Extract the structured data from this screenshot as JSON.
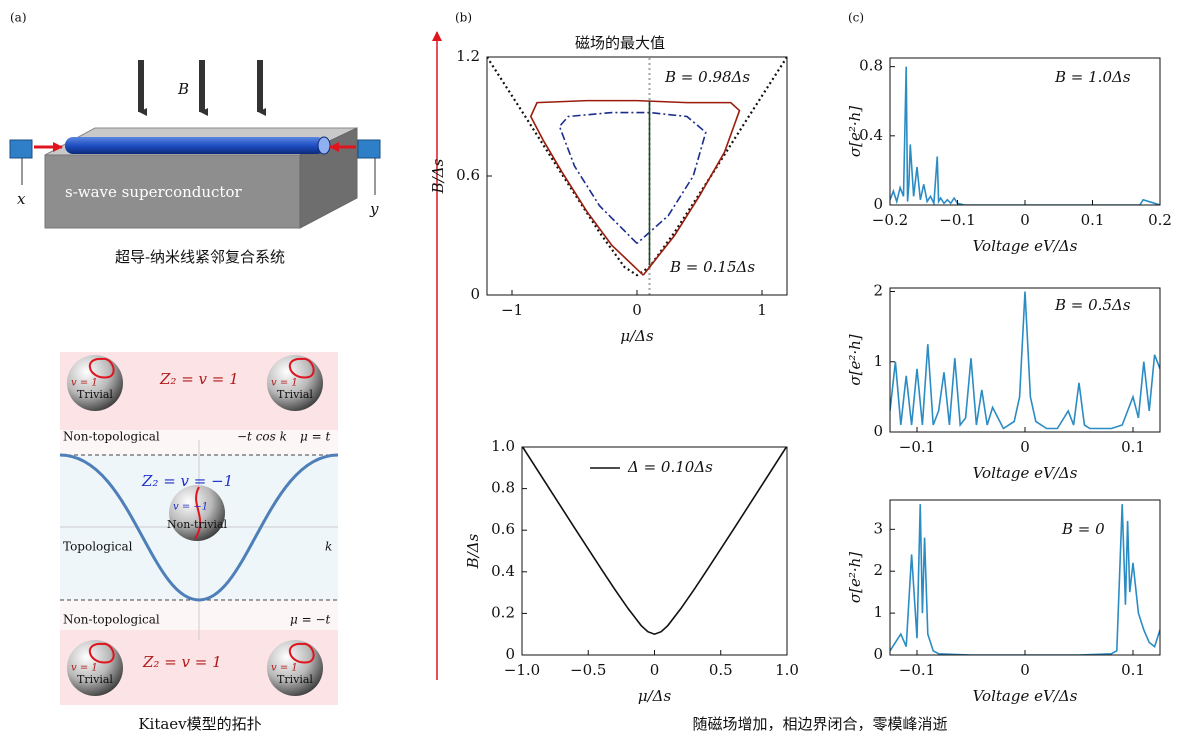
{
  "panel_labels": [
    "(a)",
    "(b)",
    "(c)"
  ],
  "device": {
    "field_label": "B",
    "substrate_label": "s-wave superconductor",
    "lead_left": "x",
    "lead_right": "y",
    "caption": "超导-纳米线紧邻复合系统"
  },
  "kitaev": {
    "top_label": "Z₂ = v = 1",
    "upper_left": "Non-topological",
    "dispersion": "−t cos k",
    "upper_right": "μ = t",
    "middle_label": "Z₂ = v = −1",
    "middle_left": "Topological",
    "axis_k": "k",
    "lower_left": "Non-topological",
    "lower_right": "μ = −t",
    "bottom_label": "Z₂ = v = 1",
    "spheres": [
      {
        "label": "Trivial",
        "v": "v = 1"
      },
      {
        "label": "Trivial",
        "v": "v = 1"
      },
      {
        "label": "Non-trivial",
        "v": "v = −1"
      },
      {
        "label": "Trivial",
        "v": "v = 1"
      },
      {
        "label": "Trivial",
        "v": "v = 1"
      }
    ],
    "caption": "Kitaev模型的拓扑"
  },
  "caption_bc": "随磁场增加，相边界闭合，零模峰消逝",
  "chart_data": [
    {
      "type": "line",
      "title": "磁场的最大值",
      "x_label": "μ/Δs",
      "y_label": "B/Δs",
      "annotations": [
        "B = 0.98Δs",
        "B = 0.15Δs"
      ],
      "xlim": [
        -1.2,
        1.2
      ],
      "ylim": [
        0,
        1.2
      ],
      "xticks": [
        {
          "value": -1,
          "label": "−1"
        },
        0,
        1
      ],
      "yticks": [
        0,
        0.6,
        1.2
      ],
      "series": [
        {
          "color": "#111111",
          "style": "dotted",
          "x": [
            -1.2,
            -0.9,
            -0.6,
            -0.3,
            -0.1,
            0,
            0.1,
            0.3,
            0.6,
            0.9,
            1.2
          ],
          "values": [
            1.2,
            0.906,
            0.608,
            0.316,
            0.141,
            0.1,
            0.141,
            0.316,
            0.608,
            0.906,
            1.2
          ]
        },
        {
          "color": "#aaaaaa",
          "style": "dotted",
          "x": [
            0.1,
            0.1
          ],
          "values": [
            0,
            1.2
          ]
        },
        {
          "color": "#9b1c0c",
          "style": "solid",
          "x": [
            0.05,
            -0.2,
            -0.4,
            -0.6,
            -0.75,
            -0.85,
            -0.8,
            -0.4,
            0,
            0.4,
            0.75,
            0.82,
            0.7,
            0.5,
            0.3,
            0.05
          ],
          "values": [
            0.1,
            0.25,
            0.42,
            0.62,
            0.78,
            0.9,
            0.97,
            0.98,
            0.98,
            0.97,
            0.97,
            0.93,
            0.72,
            0.5,
            0.3,
            0.1
          ]
        },
        {
          "color": "#1a2d8c",
          "style": "dashdot",
          "x": [
            0,
            -0.3,
            -0.5,
            -0.62,
            -0.55,
            -0.2,
            0.1,
            0.4,
            0.55,
            0.45,
            0.25,
            0
          ],
          "values": [
            0.26,
            0.45,
            0.65,
            0.85,
            0.9,
            0.92,
            0.92,
            0.9,
            0.82,
            0.6,
            0.4,
            0.26
          ]
        },
        {
          "color": "#1d4a1d",
          "style": "solid",
          "x": [
            0.1,
            0.1
          ],
          "values": [
            0.15,
            0.98
          ]
        }
      ]
    },
    {
      "type": "line",
      "x_label": "μ/Δs",
      "y_label": "B/Δs",
      "xlim": [
        -1,
        1
      ],
      "ylim": [
        0,
        1
      ],
      "xticks": [
        {
          "value": -1,
          "label": "−1.0"
        },
        {
          "value": -0.5,
          "label": "−0.5"
        },
        0,
        0.5,
        {
          "value": 1,
          "label": "1.0"
        }
      ],
      "yticks": [
        0,
        0.2,
        0.4,
        0.6,
        0.8,
        {
          "value": 1,
          "label": "1.0"
        }
      ],
      "series": [
        {
          "name": "Δ = 0.10Δs",
          "color": "#111111",
          "style": "solid",
          "x": [
            -1,
            -0.8,
            -0.6,
            -0.4,
            -0.3,
            -0.2,
            -0.1,
            -0.05,
            0,
            0.05,
            0.1,
            0.2,
            0.3,
            0.4,
            0.6,
            0.8,
            1
          ],
          "values": [
            1.005,
            0.806,
            0.608,
            0.412,
            0.316,
            0.224,
            0.141,
            0.112,
            0.1,
            0.112,
            0.141,
            0.224,
            0.316,
            0.412,
            0.608,
            0.806,
            1.005
          ]
        }
      ]
    },
    {
      "type": "line",
      "x_label": "Voltage eV/Δs",
      "y_label": "σ[e²·h]",
      "annotations": [
        "B = 1.0Δs"
      ],
      "xlim": [
        -0.2,
        0.2
      ],
      "ylim": [
        0,
        0.85
      ],
      "xticks": [
        {
          "value": -0.2,
          "label": "−0.2"
        },
        {
          "value": -0.1,
          "label": "−0.1"
        },
        0,
        0.1,
        0.2
      ],
      "yticks": [
        0,
        0.4,
        0.8
      ],
      "series": [
        {
          "color": "#2b8cc4",
          "style": "solid",
          "x": [
            -0.2,
            -0.195,
            -0.19,
            -0.185,
            -0.18,
            -0.176,
            -0.174,
            -0.172,
            -0.17,
            -0.165,
            -0.16,
            -0.155,
            -0.15,
            -0.145,
            -0.14,
            -0.135,
            -0.13,
            -0.128,
            -0.125,
            -0.12,
            -0.115,
            -0.11,
            -0.105,
            -0.1,
            -0.09,
            0,
            0.1,
            0.17,
            0.175,
            0.2
          ],
          "values": [
            0.03,
            0.08,
            0.02,
            0.1,
            0.05,
            0.8,
            0.02,
            0.12,
            0.35,
            0.05,
            0.22,
            0.03,
            0.12,
            0.02,
            0.05,
            0.01,
            0.28,
            0.02,
            0.04,
            0.01,
            0.03,
            0.01,
            0.04,
            0.01,
            0,
            0,
            0,
            0,
            0.03,
            0
          ]
        }
      ]
    },
    {
      "type": "line",
      "x_label": "Voltage eV/Δs",
      "y_label": "σ[e²·h]",
      "annotations": [
        "B = 0.5Δs"
      ],
      "xlim": [
        -0.125,
        0.125
      ],
      "ylim": [
        0,
        2.05
      ],
      "xticks": [
        {
          "value": -0.1,
          "label": "−0.1"
        },
        0,
        0.1
      ],
      "yticks": [
        0,
        1,
        2
      ],
      "series": [
        {
          "color": "#2b8cc4",
          "style": "solid",
          "x": [
            -0.125,
            -0.12,
            -0.115,
            -0.11,
            -0.105,
            -0.1,
            -0.095,
            -0.09,
            -0.085,
            -0.08,
            -0.075,
            -0.07,
            -0.065,
            -0.06,
            -0.055,
            -0.05,
            -0.045,
            -0.04,
            -0.035,
            -0.03,
            -0.02,
            -0.01,
            -0.005,
            0,
            0.005,
            0.01,
            0.02,
            0.03,
            0.04,
            0.045,
            0.05,
            0.055,
            0.06,
            0.07,
            0.08,
            0.09,
            0.1,
            0.105,
            0.11,
            0.115,
            0.12,
            0.125
          ],
          "values": [
            0.3,
            1.0,
            0.1,
            0.8,
            0.1,
            0.9,
            0.1,
            1.25,
            0.1,
            0.3,
            0.85,
            0.1,
            1.05,
            0.1,
            0.2,
            1.05,
            0.1,
            0.6,
            0.1,
            0.35,
            0.05,
            0.15,
            0.5,
            2.0,
            0.5,
            0.15,
            0.05,
            0.05,
            0.3,
            0.1,
            0.7,
            0.1,
            0.05,
            0.05,
            0.05,
            0.1,
            0.5,
            0.2,
            1.0,
            0.3,
            1.1,
            0.9
          ]
        }
      ]
    },
    {
      "type": "line",
      "x_label": "Voltage eV/Δs",
      "y_label": "σ[e²·h]",
      "annotations": [
        "B = 0"
      ],
      "xlim": [
        -0.125,
        0.125
      ],
      "ylim": [
        0,
        3.7
      ],
      "xticks": [
        {
          "value": -0.1,
          "label": "−0.1"
        },
        0,
        0.1
      ],
      "yticks": [
        0,
        1,
        2,
        3
      ],
      "series": [
        {
          "color": "#2b8cc4",
          "style": "solid",
          "x": [
            -0.125,
            -0.12,
            -0.115,
            -0.11,
            -0.105,
            -0.1,
            -0.097,
            -0.095,
            -0.093,
            -0.09,
            -0.085,
            -0.08,
            -0.05,
            0,
            0.05,
            0.08,
            0.085,
            0.09,
            0.093,
            0.095,
            0.097,
            0.1,
            0.105,
            0.11,
            0.115,
            0.12,
            0.125
          ],
          "values": [
            0.1,
            0.3,
            0.5,
            0.2,
            2.4,
            0.4,
            3.6,
            1.0,
            2.8,
            0.5,
            0.1,
            0.03,
            0,
            0,
            0,
            0.03,
            0.1,
            3.6,
            1.2,
            3.2,
            1.5,
            2.2,
            1.0,
            0.6,
            0.3,
            0.2,
            0.6
          ]
        }
      ]
    }
  ]
}
